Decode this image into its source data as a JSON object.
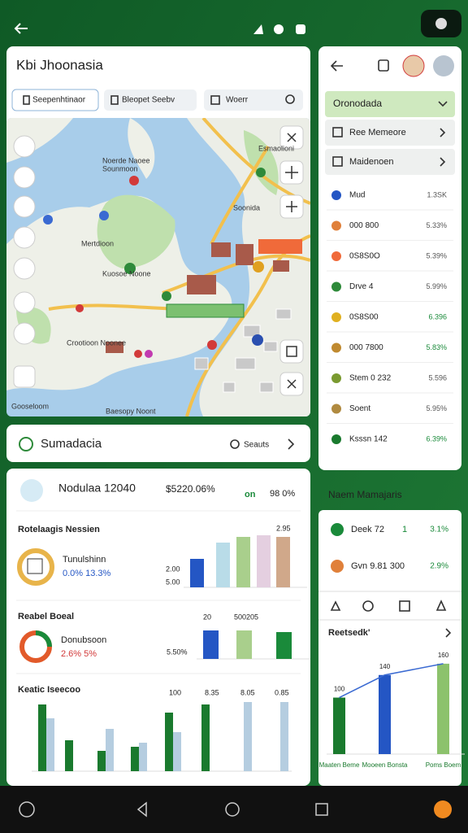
{
  "map_panel": {
    "title": "Kbi Jhoonasia",
    "tabs": [
      "Seepenhtinaor",
      "Bleopet  Seebv",
      "Woerr"
    ],
    "map_labels": [
      "Noerde Naoee",
      "Sounmoon",
      "Soonida",
      "Mertdioon",
      "Crootioon Noonee",
      "Esmaolioni",
      "Kuosoe Noone",
      "Gooseloom",
      "Baesopy Noont"
    ]
  },
  "summary_bar": {
    "title": "Sumadacia",
    "action": "Seauts"
  },
  "stats_card": {
    "headline": "Nodulaa 12040",
    "headline_value": "$5220.06%",
    "headline_tag": "on",
    "headline_pct": "98 0%",
    "sections": [
      {
        "title": "Rotelaagis Nessien",
        "name": "Tunulshinn",
        "figures": "0.0% 13.3%",
        "labels": [
          "2.95",
          "2.00",
          "5.00"
        ]
      },
      {
        "title": "Reabel Boeal",
        "name": "Donubsoon",
        "figures": "2.6% 5%",
        "labels": [
          "20",
          "500205",
          "5.50%"
        ]
      },
      {
        "title": "Keatic Iseecoo",
        "labels": [
          "100",
          "8.35",
          "8.05",
          "0.85"
        ]
      }
    ]
  },
  "side_panel": {
    "menu": [
      "Oronodada",
      "Ree Memeore",
      "Maidenoen"
    ],
    "rows": [
      {
        "name": "Mud",
        "value": "1.3SK"
      },
      {
        "name": "000 800",
        "value": "5.33%"
      },
      {
        "name": "0S8S0O",
        "value": "5.39%"
      },
      {
        "name": "Drve 4",
        "value": "5.99%"
      },
      {
        "name": "0S8S00",
        "value": "6.396"
      },
      {
        "name": "000 7800",
        "value": "5.83%"
      },
      {
        "name": "Stem 0 232",
        "value": "5.596"
      },
      {
        "name": "Soent",
        "value": "5.95%"
      },
      {
        "name": "Ksssn 142",
        "value": "6.39%"
      }
    ]
  },
  "manager_panel": {
    "title": "Naem Mamajaris",
    "rows": [
      {
        "name": "Deek 72",
        "tag": "1",
        "value": "3.1%"
      },
      {
        "name": "Gvn 9.81 300",
        "value": "2.9%"
      }
    ],
    "chart_title": "Reetsedk'"
  },
  "chart_data": [
    {
      "type": "bar",
      "values": [
        35,
        55,
        62,
        64,
        62
      ],
      "colors": [
        "#2456c4",
        "#b9dce8",
        "#a9cf8c",
        "#e4cfe0",
        "#d0a88a"
      ],
      "ylim": [
        0,
        70
      ]
    },
    {
      "type": "bar",
      "values": [
        35,
        35,
        33
      ],
      "colors": [
        "#2456c4",
        "#a9cf8c",
        "#1a8a3a"
      ],
      "ylim": [
        0,
        40
      ]
    },
    {
      "type": "bar",
      "ylim": [
        0,
        90
      ],
      "series": [
        {
          "color": "#1a7a2e",
          "values": [
            82,
            38,
            25,
            30,
            72,
            82,
            0,
            0
          ]
        },
        {
          "color": "#b5cde0",
          "values": [
            65,
            0,
            52,
            35,
            48,
            0,
            85,
            85
          ]
        }
      ]
    },
    {
      "type": "bar",
      "categories": [
        "Maaten Beme",
        "Mooeen Bonsta",
        "Poms Boem"
      ],
      "values": [
        100,
        140,
        160
      ],
      "colors": [
        "#1a7a2e",
        "#2456c4",
        "#8cc26c"
      ],
      "ylim": [
        0,
        180
      ]
    }
  ]
}
